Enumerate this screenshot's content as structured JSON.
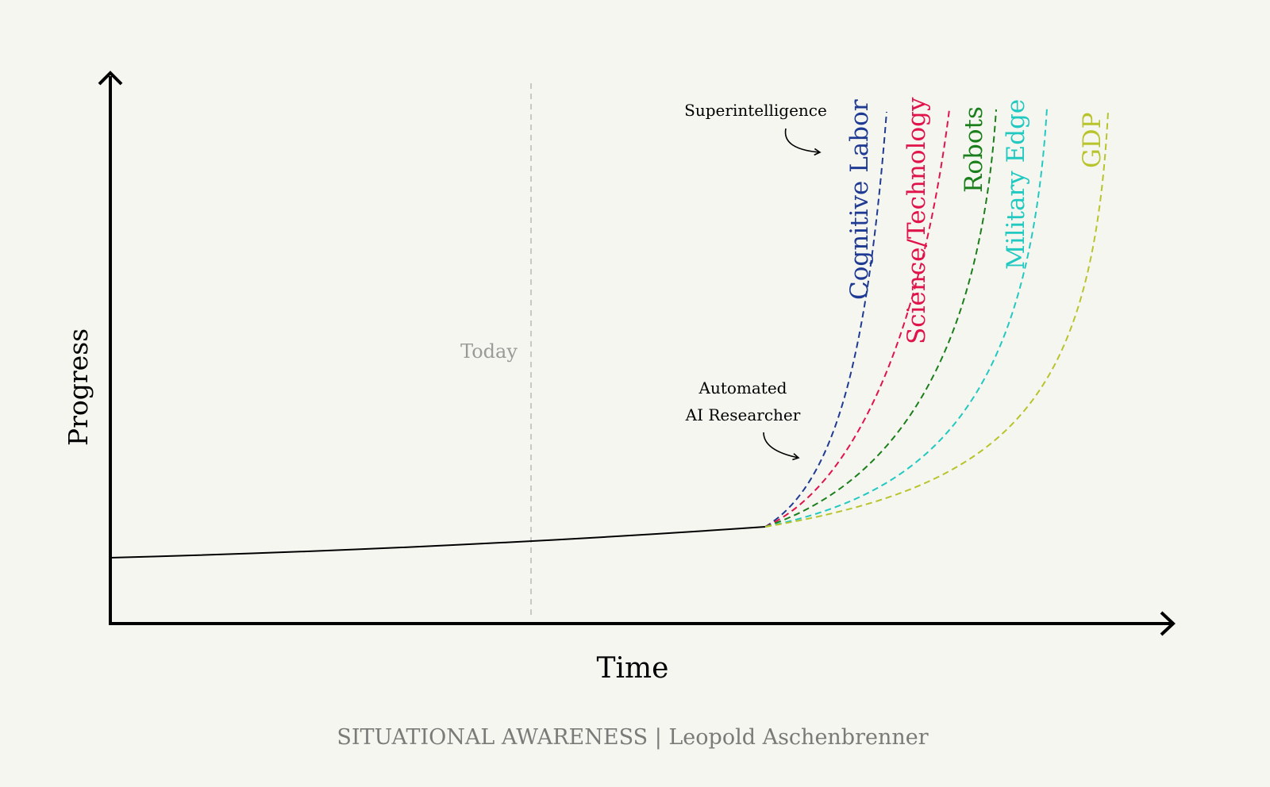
{
  "axes": {
    "x_label": "Time",
    "y_label": "Progress"
  },
  "today_label": "Today",
  "annotations": {
    "superintelligence": "Superintelligence",
    "automated_line1": "Automated",
    "automated_line2": "AI Researcher"
  },
  "series": [
    {
      "name": "Cognitive Labor",
      "color": "#1f3a93"
    },
    {
      "name": "Science/Technology",
      "color": "#e0134a"
    },
    {
      "name": "Robots",
      "color": "#1a7f1a"
    },
    {
      "name": "Military Edge",
      "color": "#22c9c0"
    },
    {
      "name": "GDP",
      "color": "#b8c42c"
    }
  ],
  "footer": "SITUATIONAL AWARENESS | Leopold Aschenbrenner",
  "colors": {
    "background": "#f6f6f1",
    "axis": "#000000",
    "today_line": "#c8c8c4",
    "today_text": "#9a9a98",
    "footer": "#7a7a78"
  }
}
